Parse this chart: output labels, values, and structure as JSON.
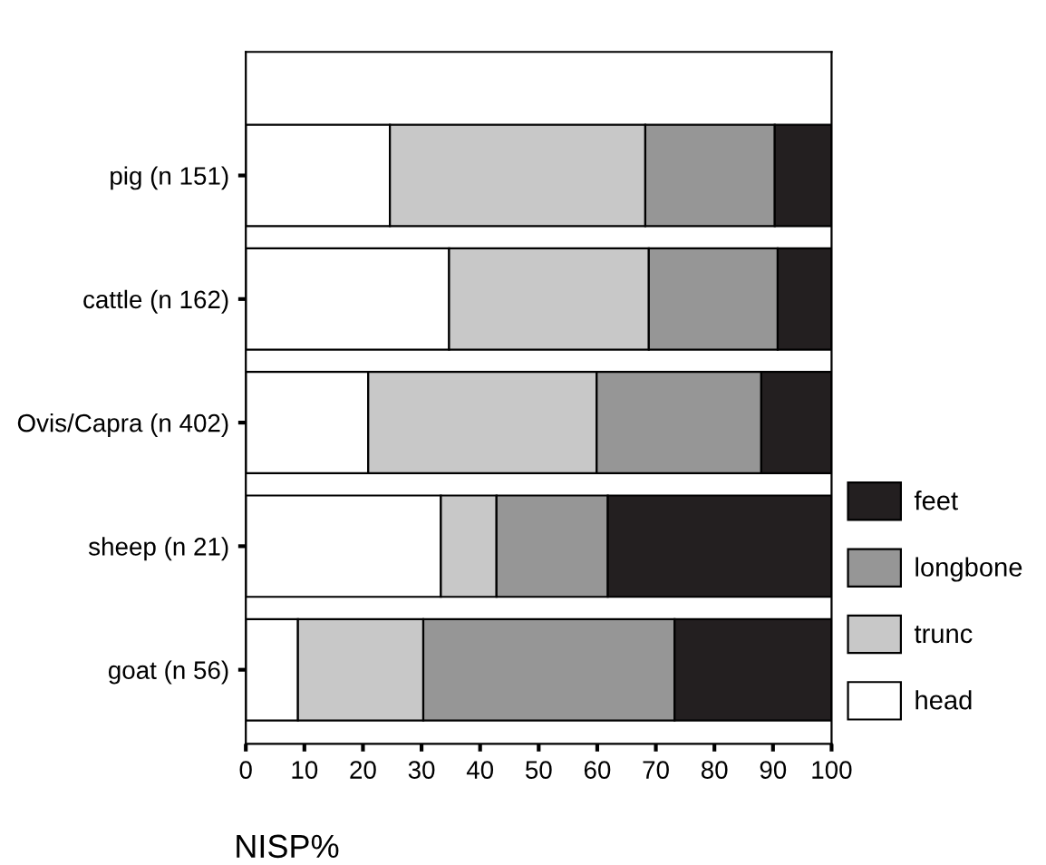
{
  "chart_data": {
    "type": "bar",
    "orientation": "horizontal",
    "stacked": true,
    "categories": [
      "pig (n 151)",
      "cattle (n 162)",
      "Ovis/Capra (n 402)",
      "sheep (n 21)",
      "goat (n 56)"
    ],
    "series": [
      {
        "name": "head",
        "color": "#ffffff",
        "values": [
          24.6,
          34.7,
          20.9,
          33.3,
          8.9
        ]
      },
      {
        "name": "trunc",
        "color": "#c8c8c8",
        "values": [
          43.6,
          34.1,
          39.0,
          9.5,
          21.4
        ]
      },
      {
        "name": "longbone",
        "color": "#969696",
        "values": [
          22.1,
          22.0,
          28.1,
          19.0,
          42.9
        ]
      },
      {
        "name": "feet",
        "color": "#231f20",
        "values": [
          9.7,
          9.2,
          12.0,
          38.2,
          26.8
        ]
      }
    ],
    "xlabel": "NISP%",
    "xlim": [
      0,
      100
    ],
    "xticks": [
      0,
      10,
      20,
      30,
      40,
      50,
      60,
      70,
      80,
      90,
      100
    ],
    "grid": false,
    "legend": "right"
  }
}
